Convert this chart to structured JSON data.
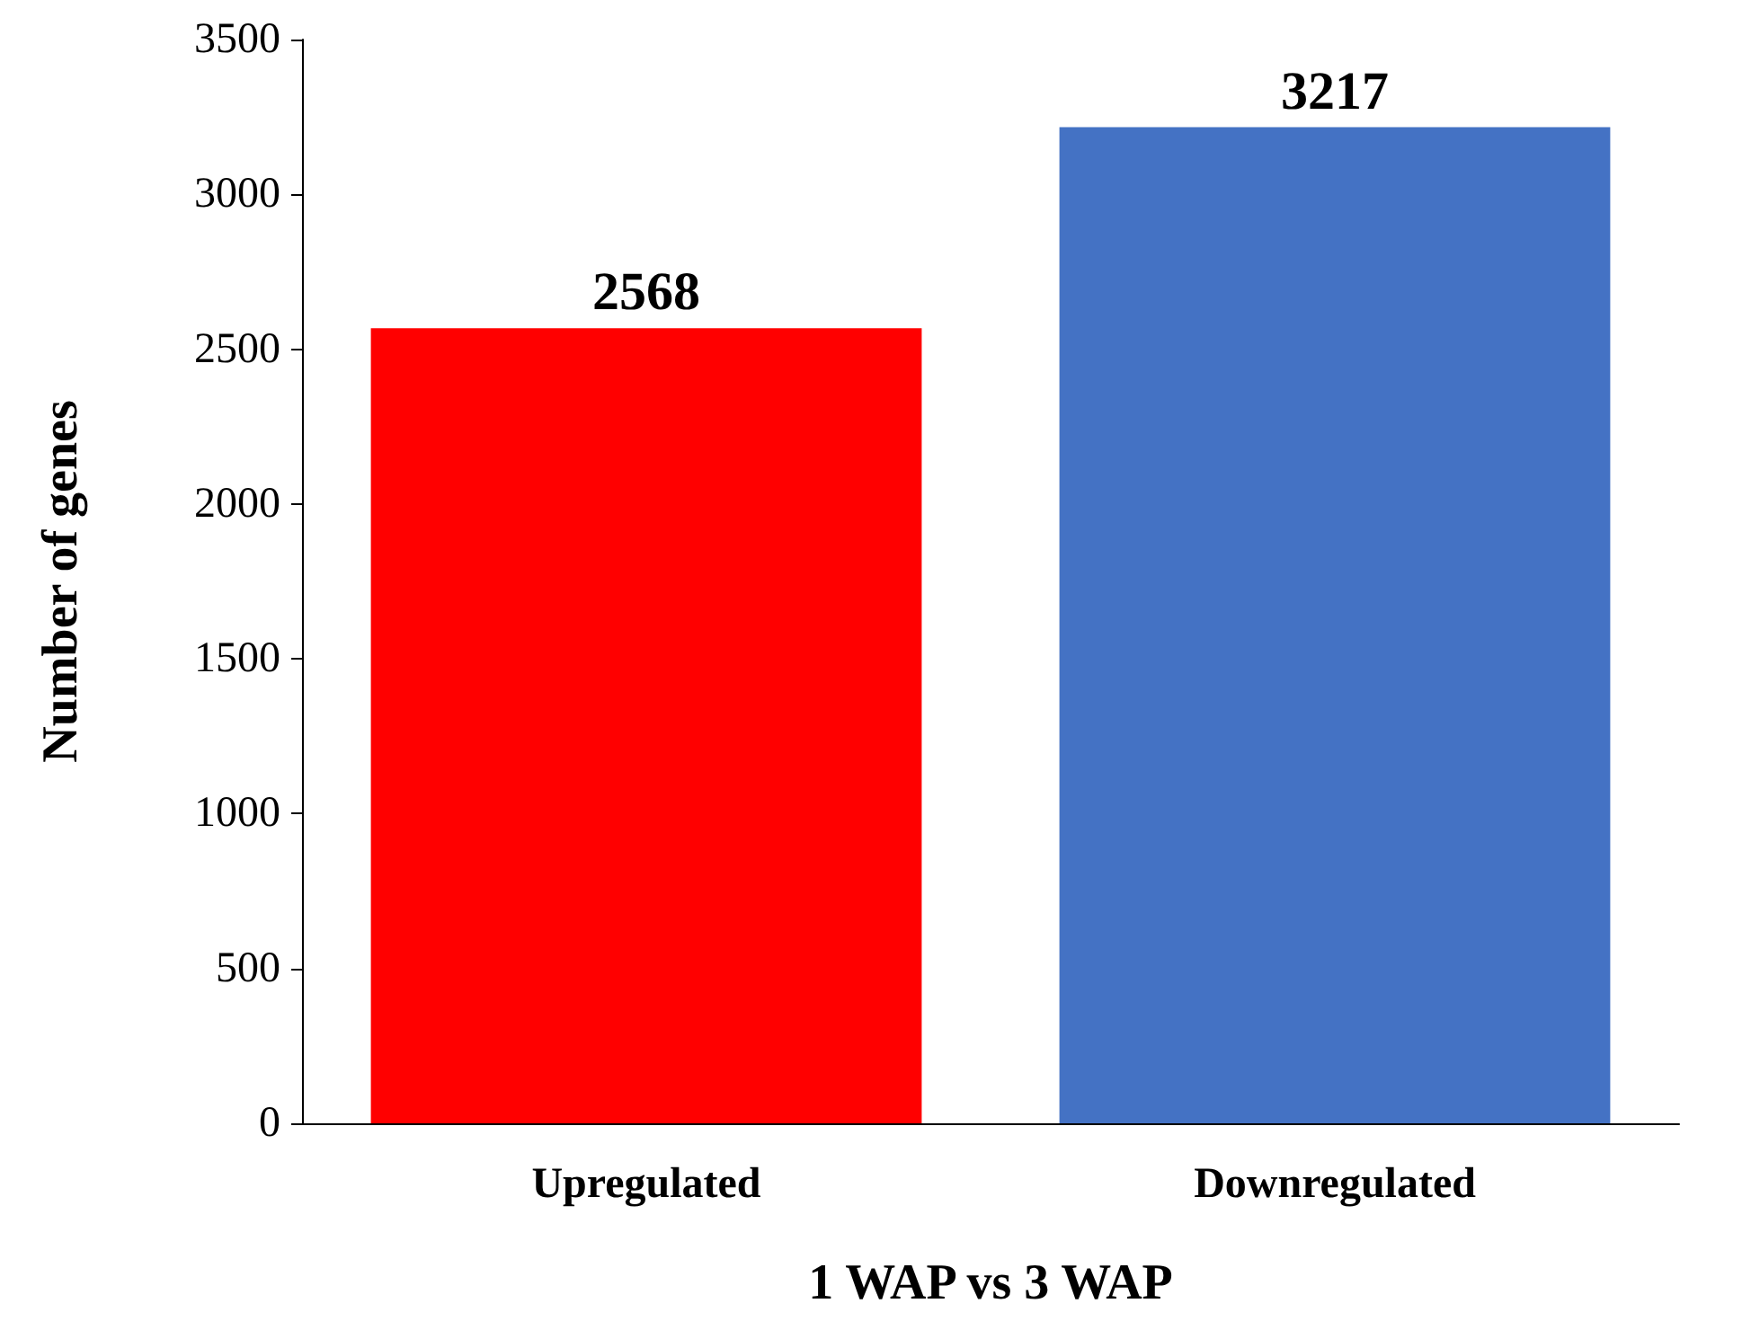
{
  "chart_data": {
    "type": "bar",
    "xlabel": "1 WAP vs 3 WAP",
    "ylabel": "Number of genes",
    "categories": [
      "Upregulated",
      "Downregulated"
    ],
    "values": [
      2568,
      3217
    ],
    "colors": [
      "#ff0000",
      "#4472c4"
    ],
    "ylim": [
      0,
      3500
    ],
    "yticks": [
      0,
      500,
      1000,
      1500,
      2000,
      2500,
      3000,
      3500
    ],
    "data_labels": true
  }
}
